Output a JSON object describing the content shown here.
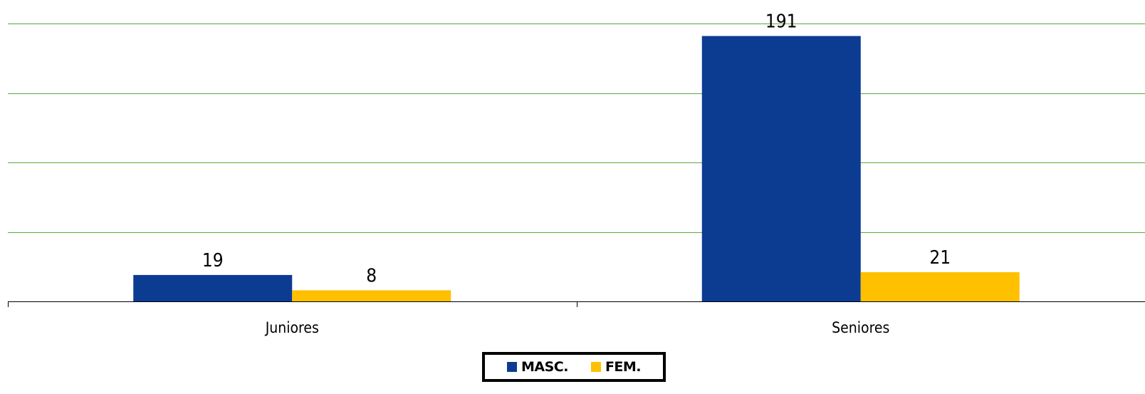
{
  "chart_data": {
    "type": "bar",
    "categories": [
      "Juniores",
      "Seniores"
    ],
    "series": [
      {
        "name": "MASC.",
        "values": [
          19,
          191
        ],
        "color": "#0c3c92"
      },
      {
        "name": "FEM.",
        "values": [
          8,
          21
        ],
        "color": "#ffc000"
      }
    ],
    "title": "",
    "xlabel": "",
    "ylabel": "",
    "ylim": [
      0,
      200
    ],
    "gridlines": [
      0,
      50,
      100,
      150,
      200
    ],
    "grid_color": "#5aaa3c",
    "grid": true,
    "legend_position": "bottom-center",
    "data_labels": true
  }
}
